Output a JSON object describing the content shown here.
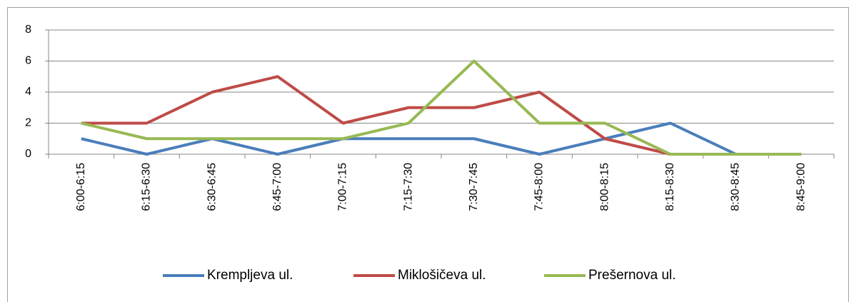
{
  "chart_data": {
    "type": "line",
    "categories": [
      "6:00-6:15",
      "6:15-6:30",
      "6:30-6:45",
      "6:45-7:00",
      "7:00-7:15",
      "7:15-7:30",
      "7:30-7:45",
      "7:45-8:00",
      "8:00-8:15",
      "8:15-8:30",
      "8:30-8:45",
      "8:45-9:00"
    ],
    "series": [
      {
        "name": "Krempljeva ul.",
        "color": "#4a7ebb",
        "values": [
          1,
          0,
          1,
          0,
          1,
          1,
          1,
          0,
          1,
          2,
          0,
          0
        ]
      },
      {
        "name": "Miklošičeva ul.",
        "color": "#be4b48",
        "values": [
          2,
          2,
          4,
          5,
          2,
          3,
          3,
          4,
          1,
          0,
          0,
          0
        ]
      },
      {
        "name": "Prešernova ul.",
        "color": "#98b954",
        "values": [
          2,
          1,
          1,
          1,
          1,
          2,
          6,
          2,
          2,
          0,
          0,
          0
        ]
      }
    ],
    "ylim": [
      0,
      8
    ],
    "yticks": [
      0,
      2,
      4,
      6,
      8
    ],
    "grid": true,
    "legend": "bottom"
  }
}
